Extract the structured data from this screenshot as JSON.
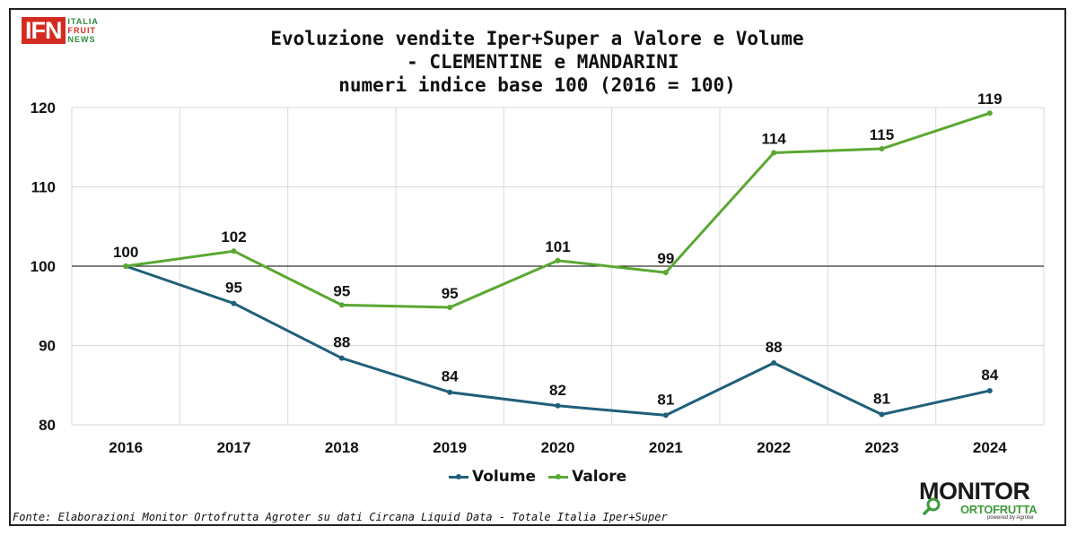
{
  "title_lines": [
    "Evoluzione vendite Iper+Super a Valore e Volume",
    " - CLEMENTINE e MANDARINI",
    "numeri indice base 100 (2016 = 100)"
  ],
  "source": "Fonte: Elaborazioni Monitor Ortofrutta Agroter su dati Circana Liquid Data - Totale Italia Iper+Super",
  "logos": {
    "ifn": {
      "mark": "IFN",
      "side": [
        "ITALIA",
        "FRUIT",
        "NEWS"
      ]
    },
    "monitor": {
      "title": "MONITOR",
      "subtitle": "ORTOFRUTTA",
      "powered": "powered by Agroter"
    }
  },
  "colors": {
    "volume": "#1f5f7a",
    "valore": "#5aa832",
    "grid": "#d9d9d9",
    "baseline": "#000000"
  },
  "chart_data": {
    "type": "line",
    "title": "Evoluzione vendite Iper+Super a Valore e Volume - CLEMENTINE e MANDARINI numeri indice base 100 (2016 = 100)",
    "categories": [
      "2016",
      "2017",
      "2018",
      "2019",
      "2020",
      "2021",
      "2022",
      "2023",
      "2024"
    ],
    "series": [
      {
        "name": "Volume",
        "values": [
          100,
          95.3,
          88.4,
          84.1,
          82.4,
          81.2,
          87.8,
          81.3,
          84.3
        ],
        "labels": [
          "",
          "95",
          "88",
          "84",
          "82",
          "81",
          "88",
          "81",
          "84"
        ]
      },
      {
        "name": "Valore",
        "values": [
          100,
          101.9,
          95.1,
          94.8,
          100.7,
          99.2,
          114.3,
          114.8,
          119.3
        ],
        "labels": [
          "100",
          "102",
          "95",
          "95",
          "101",
          "99",
          "114",
          "115",
          "119"
        ]
      }
    ],
    "ylim": [
      80,
      120
    ],
    "yticks": [
      80,
      90,
      100,
      110,
      120
    ],
    "reference_line": 100,
    "grid": true,
    "legend": "bottom-center",
    "xlabel": "",
    "ylabel": ""
  }
}
